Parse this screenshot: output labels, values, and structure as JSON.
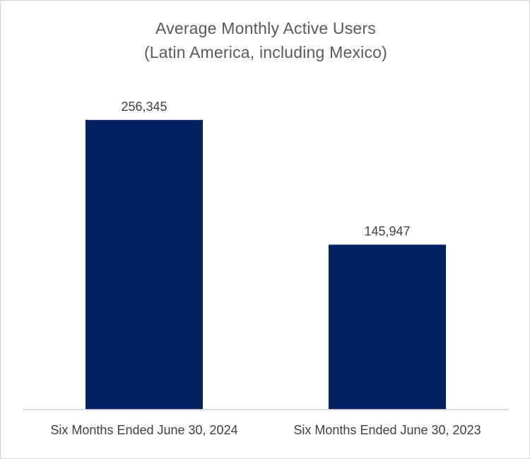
{
  "chart_data": {
    "type": "bar",
    "title": "Average Monthly Active Users",
    "subtitle": "(Latin America, including Mexico)",
    "categories": [
      "Six Months Ended June 30, 2024",
      "Six Months Ended June 30, 2023"
    ],
    "values": [
      256345,
      145947
    ],
    "data_labels": [
      "256,345",
      "145,947"
    ],
    "xlabel": "",
    "ylabel": "",
    "ylim": [
      0,
      300000
    ],
    "grid": false,
    "legend": "none",
    "colors": {
      "bar": "#002060",
      "text": "#404040",
      "title": "#595959",
      "axis": "#d0d0d0"
    }
  }
}
